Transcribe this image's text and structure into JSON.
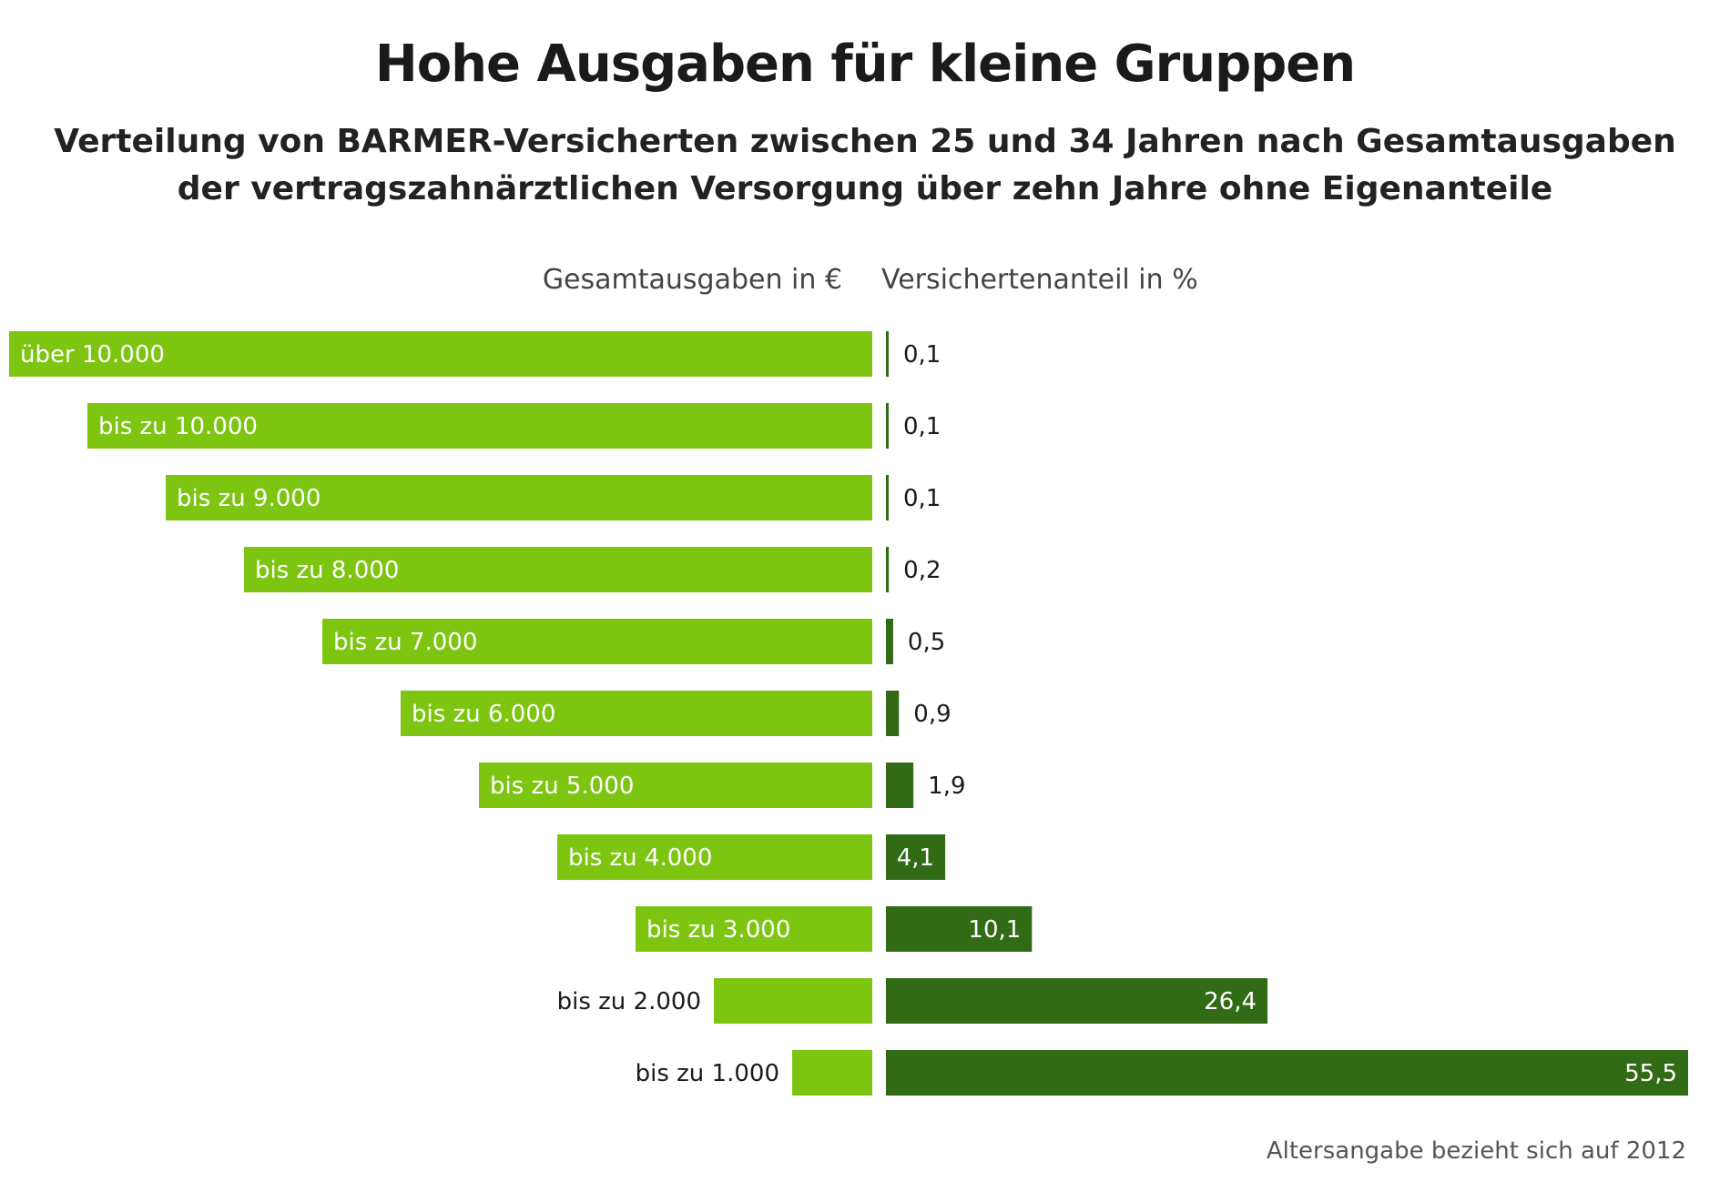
{
  "title": "Hohe Ausgaben für kleine Gruppen",
  "subtitle_line1": "Verteilung von BARMER-Versicherten zwischen 25 und 34 Jahren nach Gesamtausgaben",
  "subtitle_line2": "der vertragszahnärztlichen Versorgung über zehn Jahre ohne Eigenanteile",
  "headers": {
    "left": "Gesamtausgaben in €",
    "right": "Versichertenanteil in %"
  },
  "footnote": "Altersangabe bezieht sich auf 2012",
  "colors": {
    "left_bar": "#7ec512",
    "right_bar": "#316b16",
    "label_light": "#ffffff",
    "label_dark": "#1a1a1a"
  },
  "chart_data": {
    "type": "bar",
    "layout": "diverging-horizontal",
    "categories": [
      "über 10.000",
      "bis zu 10.000",
      "bis zu 9.000",
      "bis zu 8.000",
      "bis zu 7.000",
      "bis zu 6.000",
      "bis zu 5.000",
      "bis zu 4.000",
      "bis zu 3.000",
      "bis zu 2.000",
      "bis zu 1.000"
    ],
    "left_series": {
      "name": "Gesamtausgaben in €",
      "values": [
        11000,
        10000,
        9000,
        8000,
        7000,
        6000,
        5000,
        4000,
        3000,
        2000,
        1000
      ]
    },
    "series": [
      {
        "name": "Versichertenanteil in %",
        "values": [
          0.1,
          0.1,
          0.1,
          0.2,
          0.5,
          0.9,
          1.9,
          4.1,
          10.1,
          26.4,
          55.5
        ],
        "labels": [
          "0,1",
          "0,1",
          "0,1",
          "0,2",
          "0,5",
          "0,9",
          "1,9",
          "4,1",
          "10,1",
          "26,4",
          "55,5"
        ]
      }
    ],
    "xlim": [
      0,
      55.5
    ]
  }
}
